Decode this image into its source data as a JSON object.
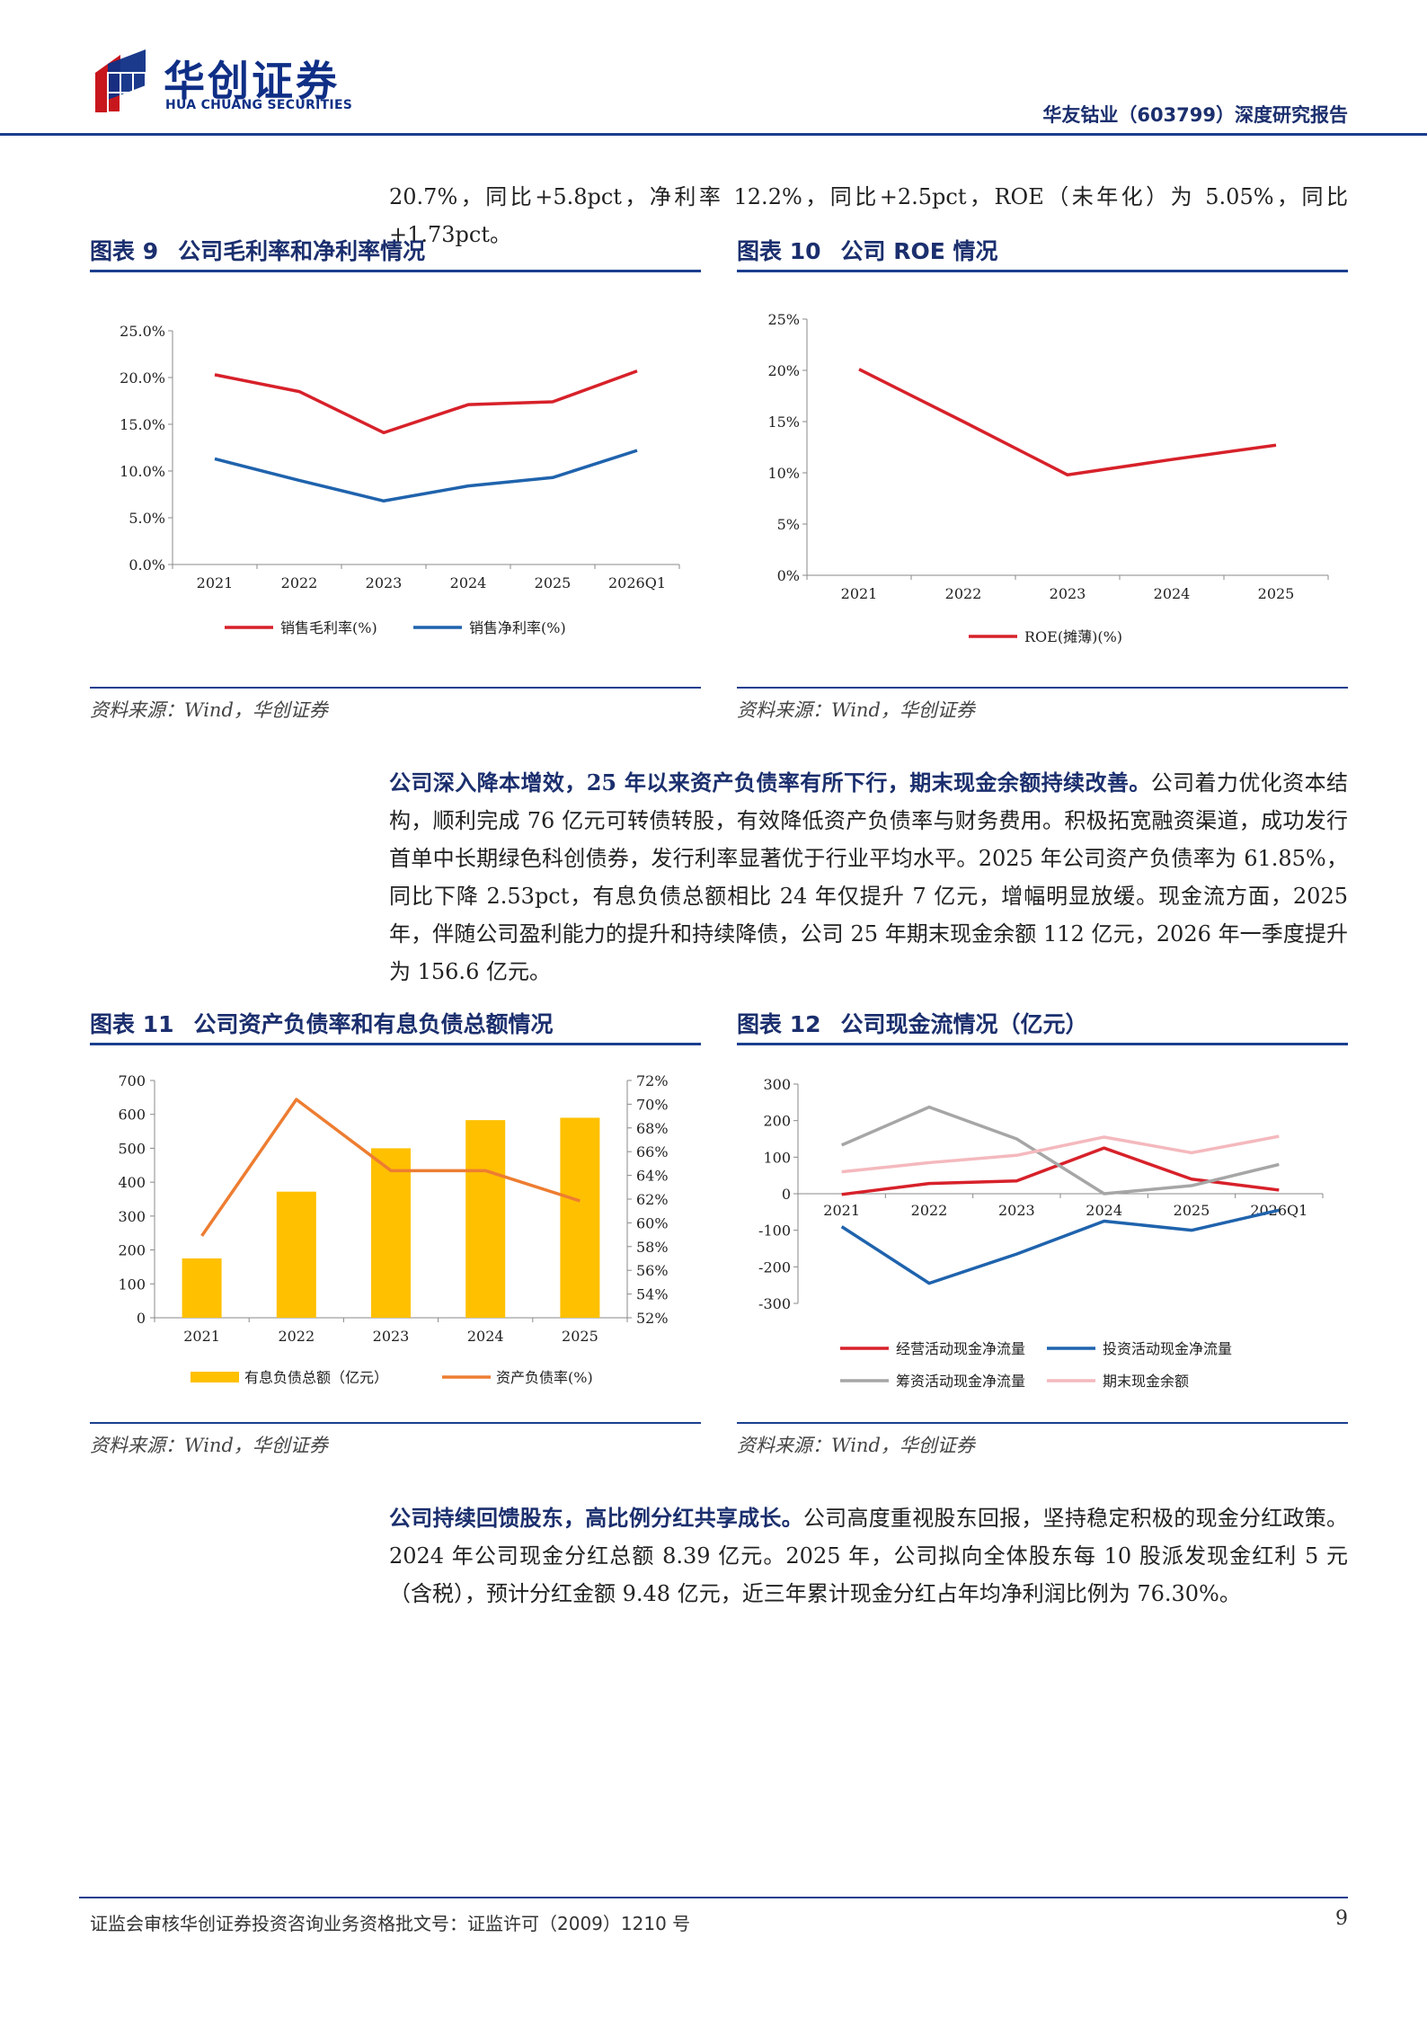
{
  "header": {
    "logo_cn": "华创证券",
    "logo_en": "HUA CHUANG SECURITIES",
    "report_title": "华友钴业（603799）深度研究报告"
  },
  "intro_line": "20.7%，同比+5.8pct，净利率 12.2%，同比+2.5pct，ROE（未年化）为 5.05%，同比+1.73pct。",
  "para1": {
    "lead": "公司深入降本增效，25 年以来资产负债率有所下行，期末现金余额持续改善。",
    "body": "公司着力优化资本结构，顺利完成 76 亿元可转债转股，有效降低资产负债率与财务费用。积极拓宽融资渠道，成功发行首单中长期绿色科创债券，发行利率显著优于行业平均水平。2025 年公司资产负债率为 61.85%，同比下降 2.53pct，有息负债总额相比 24 年仅提升 7 亿元，增幅明显放缓。现金流方面，2025 年，伴随公司盈利能力的提升和持续降债，公司 25 年期末现金余额 112 亿元，2026 年一季度提升为 156.6 亿元。"
  },
  "para2": {
    "lead": "公司持续回馈股东，高比例分红共享成长。",
    "body": "公司高度重视股东回报，坚持稳定积极的现金分红政策。2024 年公司现金分红总额 8.39 亿元。2025 年，公司拟向全体股东每 10 股派发现金红利 5 元（含税），预计分红金额 9.48 亿元，近三年累计现金分红占年均净利润比例为 76.30%。"
  },
  "figures": {
    "f9": {
      "num": "图表 9",
      "title": "公司毛利率和净利率情况",
      "source": "资料来源：Wind，华创证券"
    },
    "f10": {
      "num": "图表 10",
      "title": "公司 ROE 情况",
      "source": "资料来源：Wind，华创证券"
    },
    "f11": {
      "num": "图表 11",
      "title": "公司资产负债率和有息负债总额情况",
      "source": "资料来源：Wind，华创证券"
    },
    "f12": {
      "num": "图表 12",
      "title": "公司现金流情况（亿元）",
      "source": "资料来源：Wind，华创证券"
    }
  },
  "chart_data": [
    {
      "type": "line",
      "categories": [
        "2021",
        "2022",
        "2023",
        "2024",
        "2025",
        "2026Q1"
      ],
      "series": [
        {
          "name": "销售毛利率(%)",
          "color": "#d7212a",
          "values": [
            20.3,
            18.5,
            14.1,
            17.1,
            17.4,
            20.7
          ]
        },
        {
          "name": "销售净利率(%)",
          "color": "#1f63ad",
          "values": [
            11.3,
            9.0,
            6.8,
            8.4,
            9.3,
            12.2
          ]
        }
      ],
      "yticks": [
        "0.0%",
        "5.0%",
        "10.0%",
        "15.0%",
        "20.0%",
        "25.0%"
      ],
      "ylim": [
        0,
        25
      ],
      "legend": "bottom"
    },
    {
      "type": "line",
      "categories": [
        "2021",
        "2022",
        "2023",
        "2024",
        "2025"
      ],
      "series": [
        {
          "name": "ROE(摊薄)(%)",
          "color": "#d7212a",
          "values": [
            20.1,
            15.0,
            9.8,
            11.3,
            12.7
          ]
        }
      ],
      "yticks": [
        "0%",
        "5%",
        "10%",
        "15%",
        "20%",
        "25%"
      ],
      "ylim": [
        0,
        25
      ],
      "legend": "bottom"
    },
    {
      "type": "bar",
      "categories": [
        "2021",
        "2022",
        "2023",
        "2024",
        "2025"
      ],
      "bar_series": {
        "name": "有息负债总额（亿元）",
        "color": "#ffc000",
        "values": [
          175,
          372,
          500,
          583,
          590
        ]
      },
      "line_series": {
        "name": "资产负债率(%)",
        "color": "#ed7d31",
        "values": [
          58.9,
          70.4,
          64.4,
          64.4,
          61.85
        ]
      },
      "y_left_ticks": [
        "0",
        "100",
        "200",
        "300",
        "400",
        "500",
        "600",
        "700"
      ],
      "y_left_lim": [
        0,
        700
      ],
      "y_right_ticks": [
        "52%",
        "54%",
        "56%",
        "58%",
        "60%",
        "62%",
        "64%",
        "66%",
        "68%",
        "70%",
        "72%"
      ],
      "y_right_lim": [
        52,
        72
      ],
      "legend": "bottom"
    },
    {
      "type": "line",
      "categories": [
        "2021",
        "2022",
        "2023",
        "2024",
        "2025",
        "2026Q1"
      ],
      "series": [
        {
          "name": "经营活动现金净流量",
          "color": "#d7212a",
          "values": [
            -2,
            28,
            35,
            125,
            40,
            10
          ]
        },
        {
          "name": "投资活动现金净流量",
          "color": "#1f63ad",
          "values": [
            -90,
            -245,
            -165,
            -75,
            -100,
            -45
          ]
        },
        {
          "name": "筹资活动现金净流量",
          "color": "#a6a6a6",
          "values": [
            133,
            237,
            150,
            0,
            22,
            80
          ]
        },
        {
          "name": "期末现金余额",
          "color": "#f4b9bd",
          "values": [
            60,
            85,
            105,
            155,
            112,
            157
          ]
        }
      ],
      "yticks": [
        "-300",
        "-200",
        "-100",
        "0",
        "100",
        "200",
        "300"
      ],
      "ylim": [
        -300,
        300
      ],
      "legend": "bottom"
    }
  ],
  "footer": {
    "text": "证监会审核华创证券投资咨询业务资格批文号：证监许可（2009）1210 号",
    "page": "9"
  }
}
